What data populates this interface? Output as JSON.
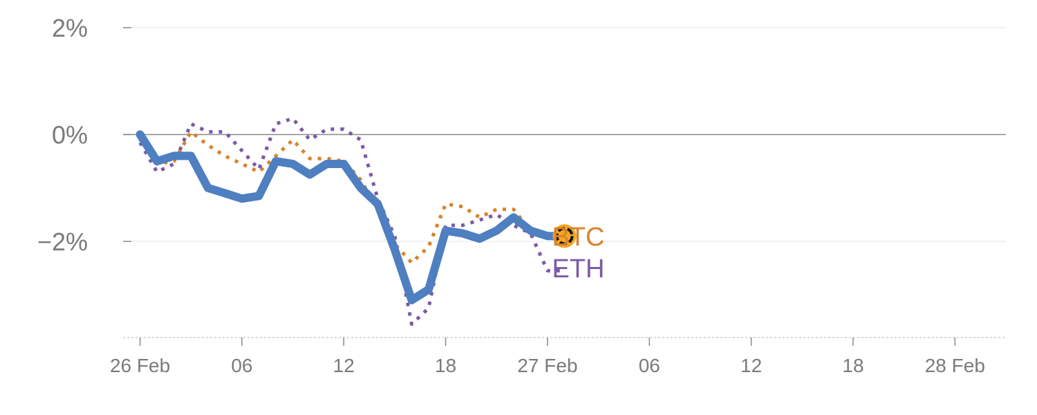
{
  "chart_data": {
    "type": "line",
    "x": [
      "26 Feb 00:00",
      "26 Feb 01:00",
      "26 Feb 02:00",
      "26 Feb 03:00",
      "26 Feb 04:00",
      "26 Feb 05:00",
      "26 Feb 06:00",
      "26 Feb 07:00",
      "26 Feb 08:00",
      "26 Feb 09:00",
      "26 Feb 10:00",
      "26 Feb 11:00",
      "26 Feb 12:00",
      "26 Feb 13:00",
      "26 Feb 14:00",
      "26 Feb 15:00",
      "26 Feb 16:00",
      "26 Feb 17:00",
      "26 Feb 18:00",
      "26 Feb 19:00",
      "26 Feb 20:00",
      "26 Feb 21:00",
      "26 Feb 22:00",
      "26 Feb 23:00",
      "27 Feb 00:00",
      "27 Feb 01:00"
    ],
    "x_range": [
      "25 Feb 23:00",
      "28 Feb 03:00"
    ],
    "y_range": [
      -3.8,
      2.0
    ],
    "y_unit": "%",
    "series": [
      {
        "name": "",
        "color": "#4e7fc1",
        "style": "solid-thick",
        "values": [
          0.0,
          -0.5,
          -0.4,
          -0.4,
          -1.0,
          -1.1,
          -1.2,
          -1.15,
          -0.5,
          -0.55,
          -0.75,
          -0.55,
          -0.55,
          -1.0,
          -1.3,
          -2.15,
          -3.1,
          -2.9,
          -1.8,
          -1.85,
          -1.95,
          -1.8,
          -1.55,
          -1.8,
          -1.9,
          -1.9
        ]
      },
      {
        "name": "BTC",
        "color": "#d9822b",
        "style": "dotted",
        "values": [
          -0.05,
          -0.55,
          -0.5,
          0.05,
          -0.2,
          -0.4,
          -0.55,
          -0.7,
          -0.4,
          -0.1,
          -0.45,
          -0.45,
          -0.5,
          -0.85,
          -1.4,
          -2.05,
          -2.4,
          -2.1,
          -1.3,
          -1.35,
          -1.55,
          -1.4,
          -1.4,
          -1.8,
          -1.9,
          -1.9
        ]
      },
      {
        "name": "ETH",
        "color": "#7b5aa6",
        "style": "dotted",
        "values": [
          -0.15,
          -0.7,
          -0.55,
          0.2,
          0.05,
          0.05,
          -0.3,
          -0.65,
          0.2,
          0.3,
          -0.1,
          0.1,
          0.1,
          -0.1,
          -1.2,
          -1.9,
          -3.55,
          -3.25,
          -1.7,
          -1.7,
          -1.6,
          -1.5,
          -1.7,
          -1.85,
          -2.55,
          -2.55
        ]
      }
    ],
    "end_marker_color": "#f5a623",
    "y_ticks": [
      {
        "value": 2,
        "label": "2%"
      },
      {
        "value": 0,
        "label": "0%"
      },
      {
        "value": -2,
        "label": "−2%"
      }
    ],
    "x_ticks": [
      {
        "at": "26 Feb 00:00",
        "label": "26 Feb"
      },
      {
        "at": "26 Feb 06:00",
        "label": "06"
      },
      {
        "at": "26 Feb 12:00",
        "label": "12"
      },
      {
        "at": "26 Feb 18:00",
        "label": "18"
      },
      {
        "at": "27 Feb 00:00",
        "label": "27 Feb"
      },
      {
        "at": "27 Feb 06:00",
        "label": "06"
      },
      {
        "at": "27 Feb 12:00",
        "label": "12"
      },
      {
        "at": "27 Feb 18:00",
        "label": "18"
      },
      {
        "at": "28 Feb 00:00",
        "label": "28 Feb"
      }
    ],
    "labels": {
      "btc": "BTC",
      "eth": "ETH"
    },
    "grid": true,
    "title": "",
    "xlabel": "",
    "ylabel": ""
  }
}
